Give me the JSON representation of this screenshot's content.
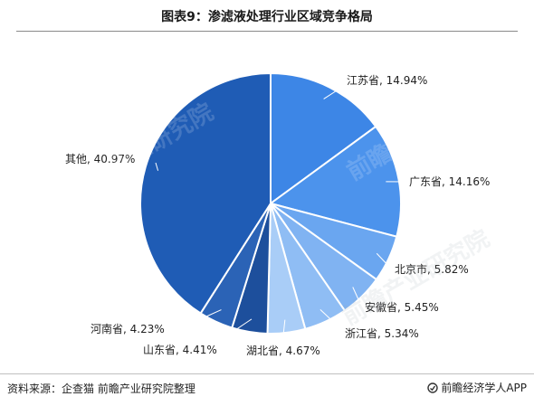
{
  "header": {
    "title": "图表9：渗滤液处理行业区域竞争格局"
  },
  "footer": {
    "source": "资料来源：企查猫 前瞻产业研究院整理",
    "brand": "前瞻经济学人APP"
  },
  "watermark": {
    "text": "前瞻产业研究院"
  },
  "chart_data": {
    "type": "pie",
    "title": "图表9：渗滤液处理行业区域竞争格局",
    "unit": "%",
    "slices": [
      {
        "label": "江苏省",
        "value": 14.94,
        "text": "江苏省, 14.94%",
        "color": "#3d86e6"
      },
      {
        "label": "广东省",
        "value": 14.16,
        "text": "广东省, 14.16%",
        "color": "#4c93ec"
      },
      {
        "label": "北京市",
        "value": 5.82,
        "text": "北京市, 5.82%",
        "color": "#6aa6f0"
      },
      {
        "label": "安徽省",
        "value": 5.45,
        "text": "安徽省, 5.45%",
        "color": "#80b3f2"
      },
      {
        "label": "浙江省",
        "value": 5.34,
        "text": "浙江省, 5.34%",
        "color": "#8fbdf4"
      },
      {
        "label": "湖北省",
        "value": 4.67,
        "text": "湖北省, 4.67%",
        "color": "#a9cdf7"
      },
      {
        "label": "山东省",
        "value": 4.41,
        "text": "山东省, 4.41%",
        "color": "#1d4f9c"
      },
      {
        "label": "河南省",
        "value": 4.23,
        "text": "河南省, 4.23%",
        "color": "#2b63b6"
      },
      {
        "label": "其他",
        "value": 40.97,
        "text": "其他, 40.97%",
        "color": "#1f5cb5"
      }
    ],
    "start_angle": "12 o'clock",
    "direction": "clockwise",
    "legend": "none"
  }
}
